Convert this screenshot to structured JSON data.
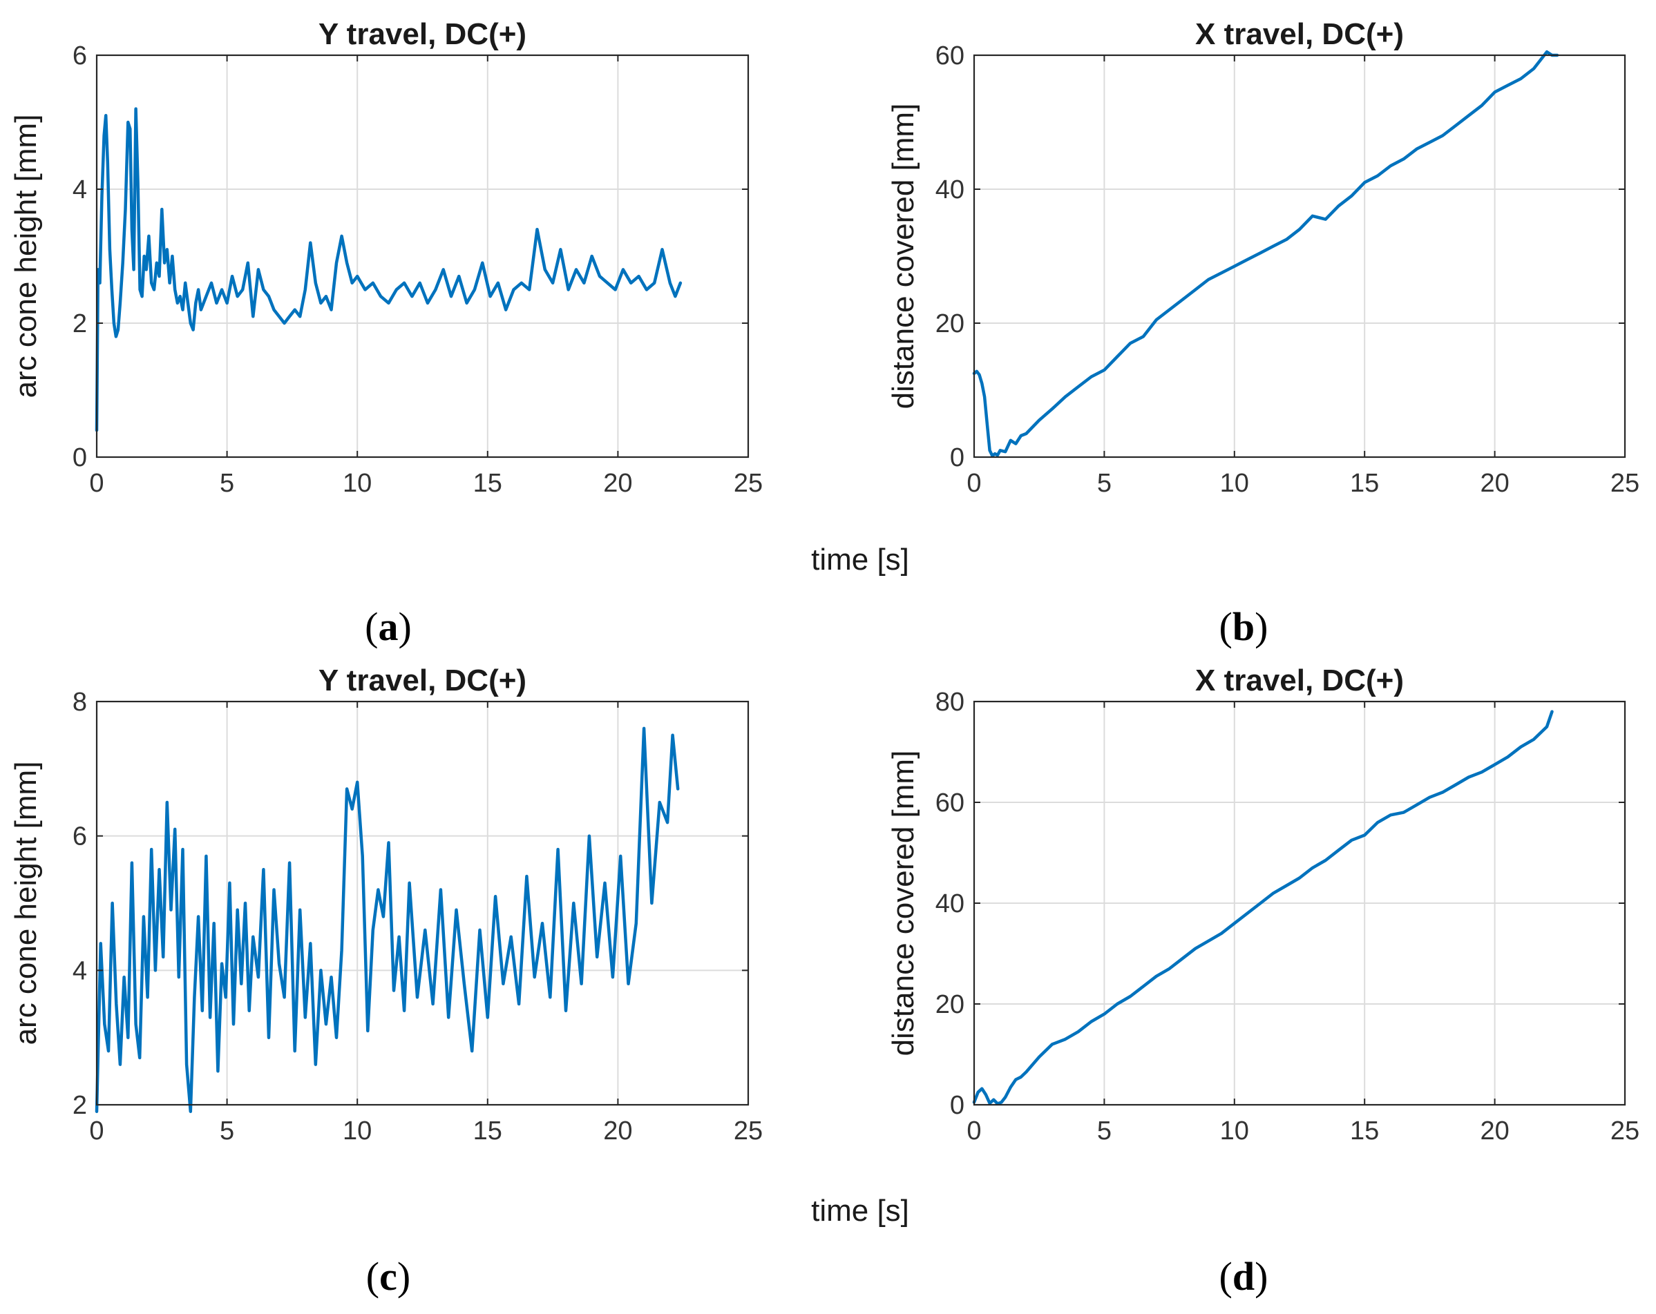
{
  "figure": {
    "xlabel_shared": "time [s]",
    "colors": {
      "line": "#0072BD",
      "grid": "#dcdcdc",
      "axis": "#262626"
    }
  },
  "chart_data": [
    {
      "type": "line",
      "panel": "(a)",
      "panel_letter": "a",
      "title": "Y travel, DC(+)",
      "xlabel": "time [s]",
      "ylabel": "arc cone height [mm]",
      "xlim": [
        0,
        25
      ],
      "ylim": [
        0,
        6
      ],
      "xticks": [
        0,
        5,
        10,
        15,
        20,
        25
      ],
      "yticks": [
        0,
        2,
        4,
        6
      ],
      "grid": true,
      "series": [
        {
          "name": "arc cone height",
          "x": [
            0,
            0.05,
            0.12,
            0.2,
            0.28,
            0.35,
            0.42,
            0.5,
            0.58,
            0.66,
            0.74,
            0.82,
            0.9,
            1.0,
            1.1,
            1.2,
            1.28,
            1.35,
            1.42,
            1.5,
            1.58,
            1.66,
            1.74,
            1.82,
            1.9,
            2.0,
            2.1,
            2.2,
            2.3,
            2.4,
            2.5,
            2.6,
            2.7,
            2.8,
            2.9,
            3.0,
            3.1,
            3.2,
            3.3,
            3.4,
            3.5,
            3.6,
            3.7,
            3.8,
            3.9,
            4.0,
            4.2,
            4.4,
            4.6,
            4.8,
            5.0,
            5.2,
            5.4,
            5.6,
            5.8,
            6.0,
            6.2,
            6.4,
            6.6,
            6.8,
            7.0,
            7.2,
            7.4,
            7.6,
            7.8,
            8.0,
            8.2,
            8.4,
            8.6,
            8.8,
            9.0,
            9.2,
            9.4,
            9.6,
            9.8,
            10.0,
            10.3,
            10.6,
            10.9,
            11.2,
            11.5,
            11.8,
            12.1,
            12.4,
            12.7,
            13.0,
            13.3,
            13.6,
            13.9,
            14.2,
            14.5,
            14.8,
            15.1,
            15.4,
            15.7,
            16.0,
            16.3,
            16.6,
            16.9,
            17.2,
            17.5,
            17.8,
            18.1,
            18.4,
            18.7,
            19.0,
            19.3,
            19.6,
            19.9,
            20.2,
            20.5,
            20.8,
            21.1,
            21.4,
            21.7,
            22.0,
            22.2,
            22.4
          ],
          "y": [
            0.4,
            2.8,
            2.6,
            3.9,
            4.8,
            5.1,
            4.4,
            3.1,
            2.5,
            2.0,
            1.8,
            1.9,
            2.3,
            2.9,
            3.7,
            5.0,
            4.9,
            3.4,
            2.8,
            5.2,
            4.1,
            2.5,
            2.4,
            3.0,
            2.8,
            3.3,
            2.6,
            2.5,
            2.9,
            2.7,
            3.7,
            2.9,
            3.1,
            2.6,
            3.0,
            2.5,
            2.3,
            2.4,
            2.2,
            2.6,
            2.3,
            2.0,
            1.9,
            2.3,
            2.5,
            2.2,
            2.4,
            2.6,
            2.3,
            2.5,
            2.3,
            2.7,
            2.4,
            2.5,
            2.9,
            2.1,
            2.8,
            2.5,
            2.4,
            2.2,
            2.1,
            2.0,
            2.1,
            2.2,
            2.1,
            2.5,
            3.2,
            2.6,
            2.3,
            2.4,
            2.2,
            2.9,
            3.3,
            2.9,
            2.6,
            2.7,
            2.5,
            2.6,
            2.4,
            2.3,
            2.5,
            2.6,
            2.4,
            2.6,
            2.3,
            2.5,
            2.8,
            2.4,
            2.7,
            2.3,
            2.5,
            2.9,
            2.4,
            2.6,
            2.2,
            2.5,
            2.6,
            2.5,
            3.4,
            2.8,
            2.6,
            3.1,
            2.5,
            2.8,
            2.6,
            3.0,
            2.7,
            2.6,
            2.5,
            2.8,
            2.6,
            2.7,
            2.5,
            2.6,
            3.1,
            2.6,
            2.4,
            2.6
          ]
        }
      ]
    },
    {
      "type": "line",
      "panel": "(b)",
      "panel_letter": "b",
      "title": "X travel, DC(+)",
      "xlabel": "time [s]",
      "ylabel": "distance covered [mm]",
      "xlim": [
        0,
        25
      ],
      "ylim": [
        0,
        60
      ],
      "xticks": [
        0,
        5,
        10,
        15,
        20,
        25
      ],
      "yticks": [
        0,
        20,
        40,
        60
      ],
      "grid": true,
      "series": [
        {
          "name": "distance covered",
          "x": [
            0,
            0.1,
            0.2,
            0.3,
            0.4,
            0.5,
            0.6,
            0.7,
            0.8,
            0.9,
            1.0,
            1.2,
            1.4,
            1.6,
            1.8,
            2.0,
            2.5,
            3.0,
            3.5,
            4.0,
            4.5,
            5.0,
            5.5,
            6.0,
            6.5,
            7.0,
            7.5,
            8.0,
            8.5,
            9.0,
            9.5,
            10.0,
            10.5,
            11.0,
            11.5,
            12.0,
            12.5,
            13.0,
            13.5,
            14.0,
            14.5,
            15.0,
            15.5,
            16.0,
            16.5,
            17.0,
            17.5,
            18.0,
            18.5,
            19.0,
            19.5,
            20.0,
            20.5,
            21.0,
            21.5,
            22.0,
            22.2,
            22.4
          ],
          "y": [
            12.5,
            12.8,
            12.3,
            11.0,
            9.0,
            5.0,
            1.0,
            0.2,
            0.5,
            0.3,
            1.0,
            0.8,
            2.5,
            2.0,
            3.2,
            3.5,
            5.5,
            7.2,
            9.0,
            10.5,
            12.0,
            13.0,
            15.0,
            17.0,
            18.0,
            20.5,
            22.0,
            23.5,
            25.0,
            26.5,
            27.5,
            28.5,
            29.5,
            30.5,
            31.5,
            32.5,
            34.0,
            36.0,
            35.5,
            37.5,
            39.0,
            41.0,
            42.0,
            43.5,
            44.5,
            46.0,
            47.0,
            48.0,
            49.5,
            51.0,
            52.5,
            54.5,
            55.5,
            56.5,
            58.0,
            60.5,
            60.0,
            60.0
          ]
        }
      ]
    },
    {
      "type": "line",
      "panel": "(c)",
      "panel_letter": "c",
      "title": "Y travel, DC(+)",
      "xlabel": "time [s]",
      "ylabel": "arc cone height [mm]",
      "xlim": [
        0,
        25
      ],
      "ylim": [
        2,
        8
      ],
      "xticks": [
        0,
        5,
        10,
        15,
        20,
        25
      ],
      "yticks": [
        2,
        4,
        6,
        8
      ],
      "grid": true,
      "series": [
        {
          "name": "arc cone height",
          "x": [
            0,
            0.15,
            0.3,
            0.45,
            0.6,
            0.75,
            0.9,
            1.05,
            1.2,
            1.35,
            1.5,
            1.65,
            1.8,
            1.95,
            2.1,
            2.25,
            2.4,
            2.55,
            2.7,
            2.85,
            3.0,
            3.15,
            3.3,
            3.45,
            3.6,
            3.75,
            3.9,
            4.05,
            4.2,
            4.35,
            4.5,
            4.65,
            4.8,
            4.95,
            5.1,
            5.25,
            5.4,
            5.55,
            5.7,
            5.85,
            6.0,
            6.2,
            6.4,
            6.6,
            6.8,
            7.0,
            7.2,
            7.4,
            7.6,
            7.8,
            8.0,
            8.2,
            8.4,
            8.6,
            8.8,
            9.0,
            9.2,
            9.4,
            9.6,
            9.8,
            10.0,
            10.2,
            10.4,
            10.6,
            10.8,
            11.0,
            11.2,
            11.4,
            11.6,
            11.8,
            12.0,
            12.3,
            12.6,
            12.9,
            13.2,
            13.5,
            13.8,
            14.1,
            14.4,
            14.7,
            15.0,
            15.3,
            15.6,
            15.9,
            16.2,
            16.5,
            16.8,
            17.1,
            17.4,
            17.7,
            18.0,
            18.3,
            18.6,
            18.9,
            19.2,
            19.5,
            19.8,
            20.1,
            20.4,
            20.7,
            21.0,
            21.3,
            21.6,
            21.9,
            22.1,
            22.3
          ],
          "y": [
            1.9,
            4.4,
            3.2,
            2.8,
            5.0,
            3.5,
            2.6,
            3.9,
            3.0,
            5.6,
            3.2,
            2.7,
            4.8,
            3.6,
            5.8,
            4.0,
            5.5,
            4.2,
            6.5,
            4.9,
            6.1,
            3.9,
            5.8,
            2.6,
            1.9,
            3.6,
            4.8,
            3.4,
            5.7,
            3.3,
            4.7,
            2.5,
            4.1,
            3.6,
            5.3,
            3.2,
            4.9,
            3.8,
            5.0,
            3.4,
            4.5,
            3.9,
            5.5,
            3.0,
            5.2,
            4.1,
            3.6,
            5.6,
            2.8,
            4.9,
            3.3,
            4.4,
            2.6,
            4.0,
            3.2,
            3.9,
            3.0,
            4.3,
            6.7,
            6.4,
            6.8,
            5.7,
            3.1,
            4.6,
            5.2,
            4.8,
            5.9,
            3.7,
            4.5,
            3.4,
            5.3,
            3.6,
            4.6,
            3.5,
            5.2,
            3.3,
            4.9,
            3.8,
            2.8,
            4.6,
            3.3,
            5.1,
            3.8,
            4.5,
            3.5,
            5.4,
            3.9,
            4.7,
            3.6,
            5.8,
            3.4,
            5.0,
            3.8,
            6.0,
            4.2,
            5.3,
            3.9,
            5.7,
            3.8,
            4.7,
            7.6,
            5.0,
            6.5,
            6.2,
            7.5,
            6.7
          ]
        }
      ]
    },
    {
      "type": "line",
      "panel": "(d)",
      "panel_letter": "d",
      "title": "X travel, DC(+)",
      "xlabel": "time [s]",
      "ylabel": "distance covered [mm]",
      "xlim": [
        0,
        25
      ],
      "ylim": [
        0,
        80
      ],
      "xticks": [
        0,
        5,
        10,
        15,
        20,
        25
      ],
      "yticks": [
        0,
        20,
        40,
        60,
        80
      ],
      "grid": true,
      "series": [
        {
          "name": "distance covered",
          "x": [
            0,
            0.15,
            0.3,
            0.45,
            0.6,
            0.75,
            0.9,
            1.05,
            1.2,
            1.4,
            1.6,
            1.8,
            2.0,
            2.5,
            3.0,
            3.5,
            4.0,
            4.5,
            5.0,
            5.5,
            6.0,
            6.5,
            7.0,
            7.5,
            8.0,
            8.5,
            9.0,
            9.5,
            10.0,
            10.5,
            11.0,
            11.5,
            12.0,
            12.5,
            13.0,
            13.5,
            14.0,
            14.5,
            15.0,
            15.5,
            16.0,
            16.5,
            17.0,
            17.5,
            18.0,
            18.5,
            19.0,
            19.5,
            20.0,
            20.5,
            21.0,
            21.5,
            22.0,
            22.2
          ],
          "y": [
            0.5,
            2.5,
            3.2,
            2.0,
            0.3,
            1.0,
            0.2,
            0.5,
            1.5,
            3.5,
            5.0,
            5.5,
            6.5,
            9.5,
            12.0,
            13.0,
            14.5,
            16.5,
            18.0,
            20.0,
            21.5,
            23.5,
            25.5,
            27.0,
            29.0,
            31.0,
            32.5,
            34.0,
            36.0,
            38.0,
            40.0,
            42.0,
            43.5,
            45.0,
            47.0,
            48.5,
            50.5,
            52.5,
            53.5,
            56.0,
            57.5,
            58.0,
            59.5,
            61.0,
            62.0,
            63.5,
            65.0,
            66.0,
            67.5,
            69.0,
            71.0,
            72.5,
            75.0,
            78.0
          ]
        }
      ]
    }
  ]
}
